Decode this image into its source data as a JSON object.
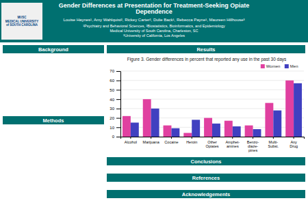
{
  "poster": {
    "title": "Gender Differences at Presentation for Treatment-Seeking Opiate\nDependence",
    "authors": "Louise Haynes¹, Amy Wahlquist², Rickey Carter², Dulie Back¹, Rebecca Payne¹, Maureen Hillhouse³",
    "affiliations": "¹Psychiatry and Behavioral Sciences, ²Biostatistics, Bioinformatics, and Epidemiology\nMedical University of South Carolina, Charleston, SC\n³University of California, Los Angeles",
    "logo": "MUSC\nMEDICAL UNIVERSITY\nof SOUTH CAROLINA",
    "sections": [
      "Background",
      "Methods",
      "Results",
      "Conclusions",
      "References",
      "Acknowledgements"
    ]
  },
  "chart_data": {
    "type": "bar",
    "title": "Figure 3. Gender differences in percent that reported any use in the past 30 days",
    "categories": [
      "Alcohol",
      "Marijuana",
      "Cocaine",
      "Heroin",
      "Other\nOpiates",
      "Amphet-\namines",
      "Benzo-\ndiaze-\npines",
      "Multi-\nSubst.",
      "Any\nDrug"
    ],
    "series": [
      {
        "name": "Women",
        "color": "#e040a0",
        "values": [
          22,
          40,
          12,
          4,
          20,
          17,
          12,
          36,
          60
        ]
      },
      {
        "name": "Men",
        "color": "#4040c0",
        "values": [
          15,
          30,
          9,
          18,
          14,
          11,
          8,
          28,
          57
        ]
      }
    ],
    "ylim": [
      0,
      70
    ],
    "yticks": [
      0,
      10,
      20,
      30,
      40,
      50,
      60,
      70
    ],
    "grid": true,
    "legend": "upper right"
  }
}
